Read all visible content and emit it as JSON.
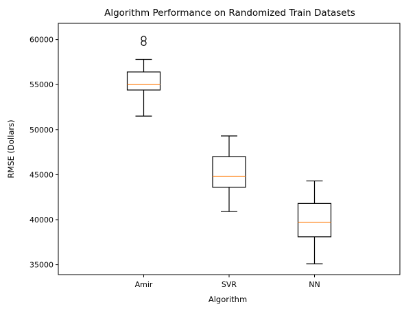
{
  "chart_data": {
    "type": "box",
    "title": "Algorithm Performance on Randomized Train Datasets",
    "xlabel": "Algorithm",
    "ylabel": "RMSE (Dollars)",
    "ylim": [
      33900,
      61800
    ],
    "yticks": [
      35000,
      40000,
      45000,
      50000,
      55000,
      60000
    ],
    "categories": [
      "Amir",
      "SVR",
      "NN"
    ],
    "boxes": [
      {
        "label": "Amir",
        "whisker_low": 51500,
        "q1": 54400,
        "median": 55000,
        "q3": 56400,
        "whisker_high": 57800,
        "outliers": [
          59600,
          60100
        ]
      },
      {
        "label": "SVR",
        "whisker_low": 40900,
        "q1": 43600,
        "median": 44800,
        "q3": 47000,
        "whisker_high": 49300,
        "outliers": []
      },
      {
        "label": "NN",
        "whisker_low": 35100,
        "q1": 38100,
        "median": 39700,
        "q3": 41800,
        "whisker_high": 44300,
        "outliers": []
      }
    ],
    "colors": {
      "box": "#000000",
      "median": "#ff7f0e",
      "outlier": "#000000"
    },
    "grid": false,
    "legend": "none"
  }
}
